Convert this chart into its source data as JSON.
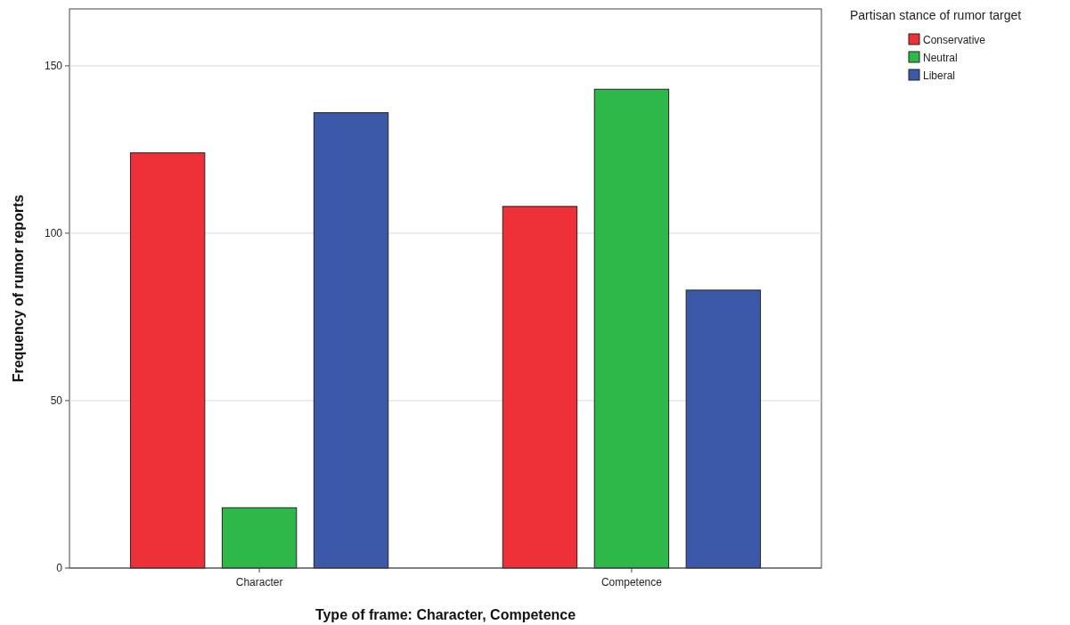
{
  "chart_data": {
    "type": "bar",
    "xlabel": "Type of frame: Character, Competence",
    "ylabel": "Frequency of rumor reports",
    "legend_title": "Partisan stance of rumor target",
    "categories": [
      "Character",
      "Competence"
    ],
    "series": [
      {
        "name": "Conservative",
        "color": "#ee3139",
        "values": [
          124,
          108
        ]
      },
      {
        "name": "Neutral",
        "color": "#2eb84a",
        "values": [
          18,
          143
        ]
      },
      {
        "name": "Liberal",
        "color": "#3c58a8",
        "values": [
          136,
          83
        ]
      }
    ],
    "ylim": [
      0,
      167
    ],
    "yticks": [
      0,
      50,
      100,
      150
    ],
    "grid": "y",
    "legend": "top right"
  }
}
